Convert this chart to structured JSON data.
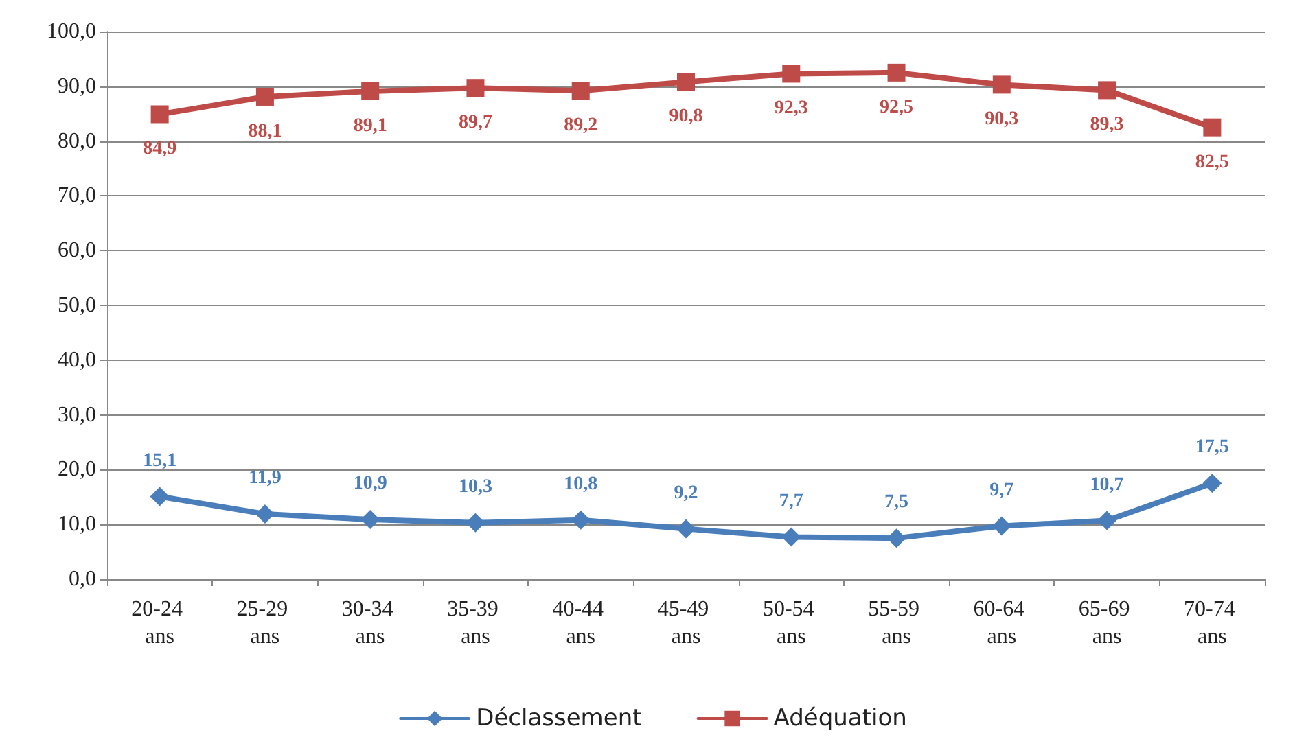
{
  "chart_data": {
    "type": "line",
    "categories": [
      "20-24 ans",
      "25-29 ans",
      "30-34 ans",
      "35-39 ans",
      "40-44 ans",
      "45-49 ans",
      "50-54 ans",
      "55-59 ans",
      "60-64 ans",
      "65-69 ans",
      "70-74 ans"
    ],
    "series": [
      {
        "name": "Déclassement",
        "color": "#4a7ebb",
        "marker": "diamond",
        "values": [
          15.1,
          11.9,
          10.9,
          10.3,
          10.8,
          9.2,
          7.7,
          7.5,
          9.7,
          10.7,
          17.5
        ],
        "value_labels": [
          "15,1",
          "11,9",
          "10,9",
          "10,3",
          "10,8",
          "9,2",
          "7,7",
          "7,5",
          "9,7",
          "10,7",
          "17,5"
        ]
      },
      {
        "name": "Adéquation",
        "color": "#be4b48",
        "marker": "square",
        "values": [
          84.9,
          88.1,
          89.1,
          89.7,
          89.2,
          90.8,
          92.3,
          92.5,
          90.3,
          89.3,
          82.5
        ],
        "value_labels": [
          "84,9",
          "88,1",
          "89,1",
          "89,7",
          "89,2",
          "90,8",
          "92,3",
          "92,5",
          "90,3",
          "89,3",
          "82,5"
        ]
      }
    ],
    "ylim": [
      0,
      100
    ],
    "yticks": [
      {
        "value": 0,
        "label": "0,0"
      },
      {
        "value": 10,
        "label": "10,0"
      },
      {
        "value": 20,
        "label": "20,0"
      },
      {
        "value": 30,
        "label": "30,0"
      },
      {
        "value": 40,
        "label": "40,0"
      },
      {
        "value": 50,
        "label": "50,0"
      },
      {
        "value": 60,
        "label": "60,0"
      },
      {
        "value": 70,
        "label": "70,0"
      },
      {
        "value": 80,
        "label": "80,0"
      },
      {
        "value": 90,
        "label": "90,0"
      },
      {
        "value": 100,
        "label": "100,0"
      }
    ],
    "grid": "y",
    "legend": "bottom",
    "line_style": "solid"
  }
}
